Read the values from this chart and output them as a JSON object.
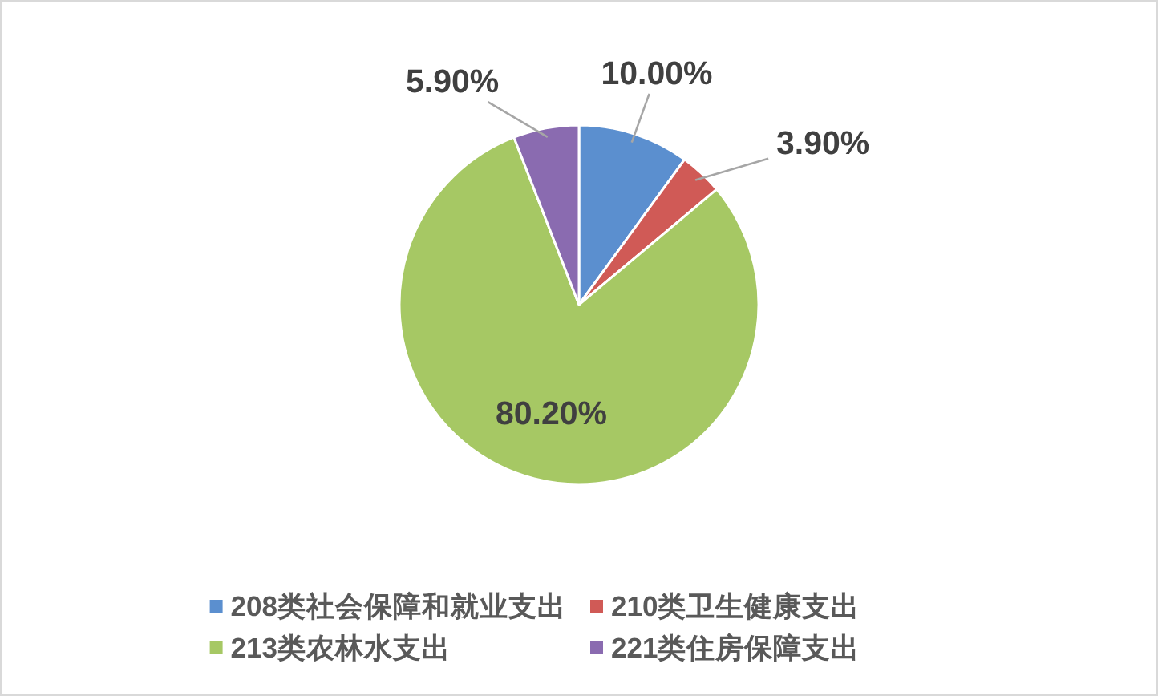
{
  "chart_data": {
    "type": "pie",
    "categories": [
      "208类社会保障和就业支出",
      "210类卫生健康支出",
      "213类农林水支出",
      "221类住房保障支出"
    ],
    "values": [
      10.0,
      3.9,
      80.2,
      5.9
    ],
    "colors": [
      "#5b8fcf",
      "#d05a56",
      "#a6c864",
      "#8a6bb0"
    ],
    "value_labels": [
      "10.00%",
      "3.90%",
      "80.20%",
      "5.90%"
    ],
    "legend": "bottom"
  }
}
